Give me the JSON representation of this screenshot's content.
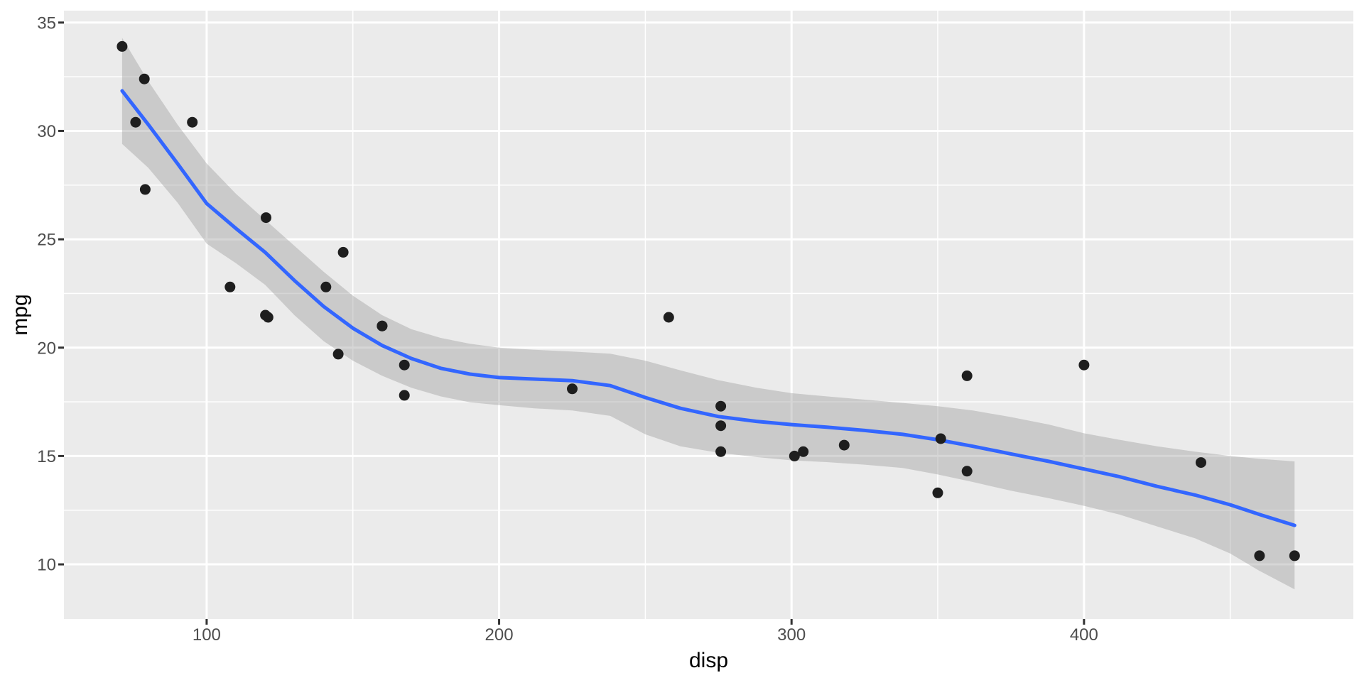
{
  "figure": {
    "background": "#ffffff"
  },
  "chart_data": {
    "type": "scatter",
    "title": "",
    "xlabel": "disp",
    "ylabel": "mpg",
    "legend": "none",
    "grid": true,
    "xlim": [
      51.2,
      492.1
    ],
    "ylim": [
      7.48,
      35.55
    ],
    "x_ticks": [
      100,
      200,
      300,
      400
    ],
    "x_minor_ticks": [
      150,
      250,
      350,
      450
    ],
    "y_ticks": [
      10,
      15,
      20,
      25,
      30,
      35
    ],
    "y_minor_ticks": [
      12.5,
      17.5,
      22.5,
      27.5,
      32.5
    ],
    "points": [
      [
        160.0,
        21.0
      ],
      [
        160.0,
        21.0
      ],
      [
        108.0,
        22.8
      ],
      [
        258.0,
        21.4
      ],
      [
        360.0,
        18.7
      ],
      [
        225.0,
        18.1
      ],
      [
        360.0,
        14.3
      ],
      [
        146.7,
        24.4
      ],
      [
        140.8,
        22.8
      ],
      [
        167.6,
        19.2
      ],
      [
        167.6,
        17.8
      ],
      [
        275.8,
        16.4
      ],
      [
        275.8,
        17.3
      ],
      [
        275.8,
        15.2
      ],
      [
        472.0,
        10.4
      ],
      [
        460.0,
        10.4
      ],
      [
        440.0,
        14.7
      ],
      [
        78.7,
        32.4
      ],
      [
        75.7,
        30.4
      ],
      [
        71.1,
        33.9
      ],
      [
        120.1,
        21.5
      ],
      [
        318.0,
        15.5
      ],
      [
        304.0,
        15.2
      ],
      [
        350.0,
        13.3
      ],
      [
        400.0,
        19.2
      ],
      [
        79.0,
        27.3
      ],
      [
        120.3,
        26.0
      ],
      [
        95.1,
        30.4
      ],
      [
        351.0,
        15.8
      ],
      [
        145.0,
        19.7
      ],
      [
        301.0,
        15.0
      ],
      [
        121.0,
        21.4
      ]
    ],
    "smooth": {
      "method": "loess",
      "x": [
        71.1,
        80,
        90,
        100,
        110,
        120,
        130,
        140,
        150,
        160,
        170,
        180,
        190,
        200,
        212,
        225,
        238,
        250,
        262,
        275,
        288,
        300,
        312,
        325,
        338,
        350,
        362,
        375,
        388,
        400,
        412,
        425,
        438,
        450,
        460,
        472
      ],
      "fit": [
        31.85,
        30.3,
        28.5,
        26.65,
        25.5,
        24.4,
        23.1,
        21.9,
        20.9,
        20.1,
        19.5,
        19.05,
        18.78,
        18.62,
        18.55,
        18.48,
        18.25,
        17.7,
        17.2,
        16.82,
        16.6,
        16.45,
        16.33,
        16.18,
        16.0,
        15.75,
        15.45,
        15.1,
        14.75,
        14.4,
        14.05,
        13.6,
        13.2,
        12.75,
        12.3,
        11.8
      ],
      "upper": [
        34.3,
        32.3,
        30.3,
        28.5,
        27.1,
        25.9,
        24.7,
        23.5,
        22.4,
        21.5,
        20.85,
        20.45,
        20.18,
        20.0,
        19.9,
        19.82,
        19.72,
        19.4,
        18.95,
        18.5,
        18.15,
        17.9,
        17.75,
        17.6,
        17.45,
        17.3,
        17.1,
        16.8,
        16.45,
        16.05,
        15.75,
        15.45,
        15.2,
        15.0,
        14.87,
        14.75
      ],
      "lower": [
        29.4,
        28.3,
        26.7,
        24.8,
        23.9,
        22.9,
        21.5,
        20.3,
        19.4,
        18.7,
        18.15,
        17.75,
        17.48,
        17.35,
        17.2,
        17.1,
        16.85,
        16.0,
        15.45,
        15.15,
        14.95,
        14.8,
        14.72,
        14.6,
        14.45,
        14.15,
        13.8,
        13.4,
        13.05,
        12.7,
        12.3,
        11.75,
        11.2,
        10.5,
        9.7,
        8.85
      ]
    },
    "colors": {
      "panel_background": "#ebebeb",
      "gridline": "#ffffff",
      "confidence_band": "#999999",
      "confidence_band_opacity": 0.4,
      "smooth_line": "#3366ff",
      "point": "#1e1e1e",
      "tick_label": "#4d4d4d",
      "axis_title": "#000000",
      "tick_mark": "#333333"
    }
  }
}
